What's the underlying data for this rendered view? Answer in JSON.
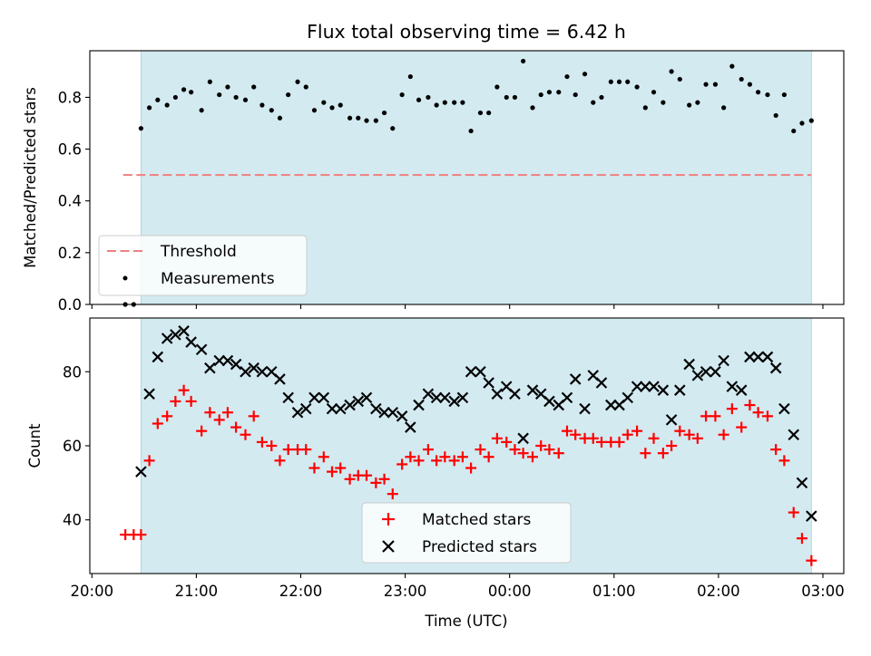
{
  "chart_data": [
    {
      "type": "scatter",
      "title": "Flux total observing time = 6.42 h",
      "ylabel": "Matched/Predicted stars",
      "xlabel": "",
      "xlim": [
        19.98,
        27.2
      ],
      "ylim": [
        0,
        0.98
      ],
      "yticks": [
        0.0,
        0.2,
        0.4,
        0.6,
        0.8
      ],
      "ytick_labels": [
        "0.0",
        "0.2",
        "0.4",
        "0.6",
        "0.8"
      ],
      "xticks": [
        20,
        21,
        22,
        23,
        24,
        25,
        26,
        27
      ],
      "observing_span": [
        20.47,
        26.89
      ],
      "shade_color": "#d3eaf1",
      "threshold": {
        "name": "Threshold",
        "y": 0.5,
        "x": [
          20.3,
          26.89
        ],
        "color": "#f07f7f"
      },
      "legend": {
        "position": "lower-left",
        "entries": [
          "Threshold",
          "Measurements"
        ]
      },
      "series": [
        {
          "name": "Measurements",
          "color": "#000000",
          "x": [
            20.32,
            20.4,
            20.47,
            20.55,
            20.63,
            20.72,
            20.8,
            20.88,
            20.95,
            21.05,
            21.13,
            21.22,
            21.3,
            21.38,
            21.47,
            21.55,
            21.63,
            21.72,
            21.8,
            21.88,
            21.97,
            22.05,
            22.13,
            22.22,
            22.3,
            22.38,
            22.47,
            22.55,
            22.63,
            22.72,
            22.8,
            22.88,
            22.97,
            23.05,
            23.13,
            23.22,
            23.3,
            23.38,
            23.47,
            23.55,
            23.63,
            23.72,
            23.8,
            23.88,
            23.97,
            24.05,
            24.13,
            24.22,
            24.3,
            24.38,
            24.47,
            24.55,
            24.63,
            24.72,
            24.8,
            24.88,
            24.97,
            25.05,
            25.13,
            25.22,
            25.3,
            25.38,
            25.47,
            25.55,
            25.63,
            25.72,
            25.8,
            25.88,
            25.97,
            26.05,
            26.13,
            26.22,
            26.3,
            26.38,
            26.47,
            26.55,
            26.63,
            26.72,
            26.8,
            26.89
          ],
          "y": [
            0.0,
            0.0,
            0.68,
            0.76,
            0.79,
            0.77,
            0.8,
            0.83,
            0.82,
            0.75,
            0.86,
            0.81,
            0.84,
            0.8,
            0.79,
            0.84,
            0.77,
            0.75,
            0.72,
            0.81,
            0.86,
            0.84,
            0.75,
            0.78,
            0.76,
            0.77,
            0.72,
            0.72,
            0.71,
            0.71,
            0.74,
            0.68,
            0.81,
            0.88,
            0.79,
            0.8,
            0.77,
            0.78,
            0.78,
            0.78,
            0.67,
            0.74,
            0.74,
            0.84,
            0.8,
            0.8,
            0.94,
            0.76,
            0.81,
            0.82,
            0.82,
            0.88,
            0.81,
            0.89,
            0.78,
            0.8,
            0.86,
            0.86,
            0.86,
            0.84,
            0.76,
            0.82,
            0.78,
            0.9,
            0.87,
            0.77,
            0.78,
            0.85,
            0.85,
            0.76,
            0.92,
            0.87,
            0.85,
            0.82,
            0.81,
            0.73,
            0.81,
            0.67,
            0.7,
            0.71
          ]
        }
      ]
    },
    {
      "type": "scatter",
      "title": "",
      "ylabel": "Count",
      "xlabel": "Time (UTC)",
      "xlim": [
        19.98,
        27.2
      ],
      "ylim": [
        25.5,
        94.5
      ],
      "yticks": [
        40,
        60,
        80
      ],
      "ytick_labels": [
        "40",
        "60",
        "80"
      ],
      "xticks": [
        20,
        21,
        22,
        23,
        24,
        25,
        26,
        27
      ],
      "xtick_labels": [
        "20:00",
        "21:00",
        "22:00",
        "23:00",
        "00:00",
        "01:00",
        "02:00",
        "03:00"
      ],
      "observing_span": [
        20.47,
        26.89
      ],
      "shade_color": "#d3eaf1",
      "legend": {
        "position": "lower-center",
        "entries": [
          "Matched stars",
          "Predicted stars"
        ]
      },
      "series": [
        {
          "name": "Matched stars",
          "color": "#ff0000",
          "marker": "plus",
          "x": [
            20.32,
            20.4,
            20.47,
            20.55,
            20.63,
            20.72,
            20.8,
            20.88,
            20.95,
            21.05,
            21.13,
            21.22,
            21.3,
            21.38,
            21.47,
            21.55,
            21.63,
            21.72,
            21.8,
            21.88,
            21.97,
            22.05,
            22.13,
            22.22,
            22.3,
            22.38,
            22.47,
            22.55,
            22.63,
            22.72,
            22.8,
            22.88,
            22.97,
            23.05,
            23.13,
            23.22,
            23.3,
            23.38,
            23.47,
            23.55,
            23.63,
            23.72,
            23.8,
            23.88,
            23.97,
            24.05,
            24.13,
            24.22,
            24.3,
            24.38,
            24.47,
            24.55,
            24.63,
            24.72,
            24.8,
            24.88,
            24.97,
            25.05,
            25.13,
            25.22,
            25.3,
            25.38,
            25.47,
            25.55,
            25.63,
            25.72,
            25.8,
            25.88,
            25.97,
            26.05,
            26.13,
            26.22,
            26.3,
            26.38,
            26.47,
            26.55,
            26.63,
            26.72,
            26.8,
            26.89
          ],
          "y": [
            36,
            36,
            36,
            56,
            66,
            68,
            72,
            75,
            72,
            64,
            69,
            67,
            69,
            65,
            63,
            68,
            61,
            60,
            56,
            59,
            59,
            59,
            54,
            57,
            53,
            54,
            51,
            52,
            52,
            50,
            51,
            47,
            55,
            57,
            56,
            59,
            56,
            57,
            56,
            57,
            54,
            59,
            57,
            62,
            61,
            59,
            58,
            57,
            60,
            59,
            58,
            64,
            63,
            62,
            62,
            61,
            61,
            61,
            63,
            64,
            58,
            62,
            58,
            60,
            64,
            63,
            62,
            68,
            68,
            63,
            70,
            65,
            71,
            69,
            68,
            59,
            56,
            42,
            35,
            29
          ]
        },
        {
          "name": "Predicted stars",
          "color": "#000000",
          "marker": "x",
          "x": [
            20.47,
            20.55,
            20.63,
            20.72,
            20.8,
            20.88,
            20.95,
            21.05,
            21.13,
            21.22,
            21.3,
            21.38,
            21.47,
            21.55,
            21.63,
            21.72,
            21.8,
            21.88,
            21.97,
            22.05,
            22.13,
            22.22,
            22.3,
            22.38,
            22.47,
            22.55,
            22.63,
            22.72,
            22.8,
            22.88,
            22.97,
            23.05,
            23.13,
            23.22,
            23.3,
            23.38,
            23.47,
            23.55,
            23.63,
            23.72,
            23.8,
            23.88,
            23.97,
            24.05,
            24.13,
            24.22,
            24.3,
            24.38,
            24.47,
            24.55,
            24.63,
            24.72,
            24.8,
            24.88,
            24.97,
            25.05,
            25.13,
            25.22,
            25.3,
            25.38,
            25.47,
            25.55,
            25.63,
            25.72,
            25.8,
            25.88,
            25.97,
            26.05,
            26.13,
            26.22,
            26.3,
            26.38,
            26.47,
            26.55,
            26.63,
            26.72,
            26.8,
            26.89
          ],
          "y": [
            53,
            74,
            84,
            89,
            90,
            91,
            88,
            86,
            81,
            83,
            83,
            82,
            80,
            81,
            80,
            80,
            78,
            73,
            69,
            70,
            73,
            73,
            70,
            70,
            71,
            72,
            73,
            70,
            69,
            69,
            68,
            65,
            71,
            74,
            73,
            73,
            72,
            73,
            80,
            80,
            77,
            74,
            76,
            74,
            62,
            75,
            74,
            72,
            71,
            73,
            78,
            70,
            79,
            77,
            71,
            71,
            73,
            76,
            76,
            76,
            75,
            67,
            75,
            82,
            79,
            80,
            80,
            83,
            76,
            75,
            84,
            84,
            84,
            81,
            70,
            63,
            50,
            41
          ]
        }
      ]
    }
  ]
}
